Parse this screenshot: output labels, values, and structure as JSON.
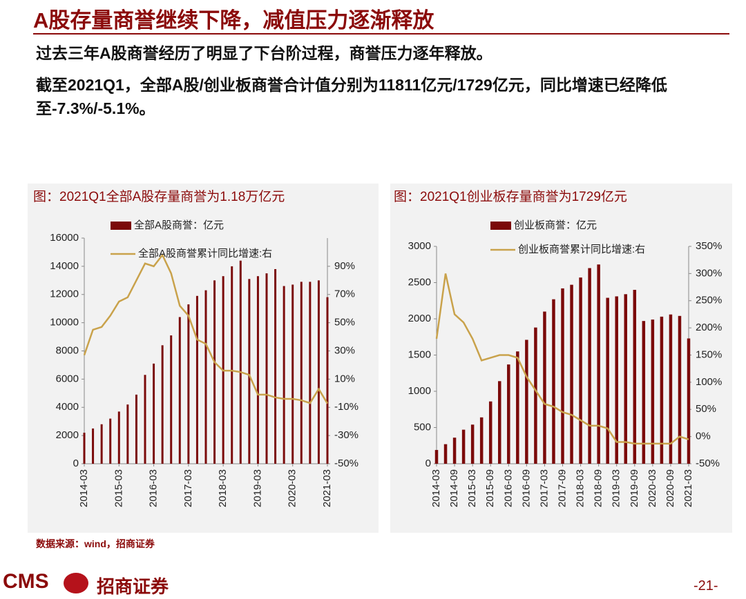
{
  "title": "A股存量商誉继续下降，减值压力逐渐释放",
  "bullets": [
    "过去三年A股商誉经历了明显了下台阶过程，商誉压力逐年释放。",
    "截至2021Q1，全部A股/创业板商誉合计值分别为11811亿元/1729亿元，同比增速已经降低至-7.3%/-5.1%。"
  ],
  "source": "数据来源：wind，招商证券",
  "footer": {
    "logo": "CMS",
    "company": "招商证券",
    "page": "-21-"
  },
  "chart_data": [
    {
      "type": "combo",
      "title": "图：2021Q1全部A股存量商誉为1.18万亿元",
      "categories": [
        "2014-03",
        null,
        null,
        null,
        "2015-03",
        null,
        null,
        null,
        "2016-03",
        null,
        null,
        null,
        "2017-03",
        null,
        null,
        null,
        "2018-03",
        null,
        null,
        null,
        "2019-03",
        null,
        null,
        null,
        "2020-03",
        null,
        null,
        null,
        "2021-03"
      ],
      "series": [
        {
          "name": "全部A股商誉：亿元",
          "color": "#7b0a0a",
          "values": [
            2200,
            2500,
            2800,
            3200,
            3700,
            4200,
            4900,
            6300,
            7100,
            8400,
            9100,
            10400,
            11300,
            11900,
            12300,
            13000,
            13300,
            14000,
            14400,
            13100,
            13300,
            13500,
            13800,
            12600,
            12700,
            12900,
            12900,
            13000,
            11811
          ]
        },
        {
          "name": "全部A股商誉累计同比增速:右",
          "color": "#c9a24b",
          "axis": "y2",
          "values": [
            27,
            45,
            47,
            55,
            65,
            68,
            80,
            92,
            90,
            98,
            85,
            62,
            55,
            38,
            35,
            22,
            16,
            16,
            15,
            13,
            -1,
            -1,
            -3,
            -4,
            -4,
            -5,
            -7,
            3,
            -7.3
          ]
        }
      ],
      "ylim": [
        0,
        16000
      ],
      "yticks": [
        0,
        2000,
        4000,
        6000,
        8000,
        10000,
        12000,
        14000,
        16000
      ],
      "y2lim": [
        -50,
        110
      ],
      "y2ticks": [
        {
          "value": -50,
          "label": "-50%"
        },
        {
          "value": -30,
          "label": "-30%"
        },
        {
          "value": -10,
          "label": "-10%"
        },
        {
          "value": 10,
          "label": "10%"
        },
        {
          "value": 30,
          "label": "30%"
        },
        {
          "value": 50,
          "label": "50%"
        },
        {
          "value": 70,
          "label": "70%"
        },
        {
          "value": 90,
          "label": "90%"
        }
      ]
    },
    {
      "type": "combo",
      "title": "图：2021Q1创业板存量商誉为1729亿元",
      "categories": [
        "2014-03",
        null,
        "2014-09",
        null,
        "2015-03",
        null,
        "2015-09",
        null,
        "2016-03",
        null,
        "2016-09",
        null,
        "2017-03",
        null,
        "2017-09",
        null,
        "2018-03",
        null,
        "2018-09",
        null,
        "2019-03",
        null,
        "2019-09",
        null,
        "2020-03",
        null,
        "2020-09",
        null,
        "2021-03"
      ],
      "series": [
        {
          "name": "创业板商誉：亿元",
          "color": "#7b0a0a",
          "values": [
            190,
            270,
            360,
            470,
            540,
            640,
            860,
            1140,
            1370,
            1550,
            1710,
            1880,
            2100,
            2270,
            2420,
            2470,
            2570,
            2700,
            2750,
            2290,
            2310,
            2340,
            2400,
            1970,
            1990,
            2030,
            2060,
            2040,
            1729
          ]
        },
        {
          "name": "创业板商誉累计同比增速:右",
          "color": "#c9a24b",
          "axis": "y2",
          "values": [
            180,
            300,
            225,
            210,
            180,
            140,
            145,
            150,
            150,
            145,
            110,
            85,
            60,
            55,
            45,
            40,
            30,
            20,
            20,
            15,
            -10,
            -10,
            -13,
            -13,
            -13,
            -13,
            -13,
            0,
            -5.1
          ]
        }
      ],
      "ylim": [
        0,
        3000
      ],
      "yticks": [
        0,
        500,
        1000,
        1500,
        2000,
        2500,
        3000
      ],
      "y2lim": [
        -50,
        350
      ],
      "y2ticks": [
        {
          "value": -50,
          "label": "-50%"
        },
        {
          "value": 0,
          "label": "0%"
        },
        {
          "value": 50,
          "label": "50%"
        },
        {
          "value": 100,
          "label": "100%"
        },
        {
          "value": 150,
          "label": "150%"
        },
        {
          "value": 200,
          "label": "200%"
        },
        {
          "value": 250,
          "label": "250%"
        },
        {
          "value": 300,
          "label": "300%"
        },
        {
          "value": 350,
          "label": "350%"
        }
      ]
    }
  ]
}
